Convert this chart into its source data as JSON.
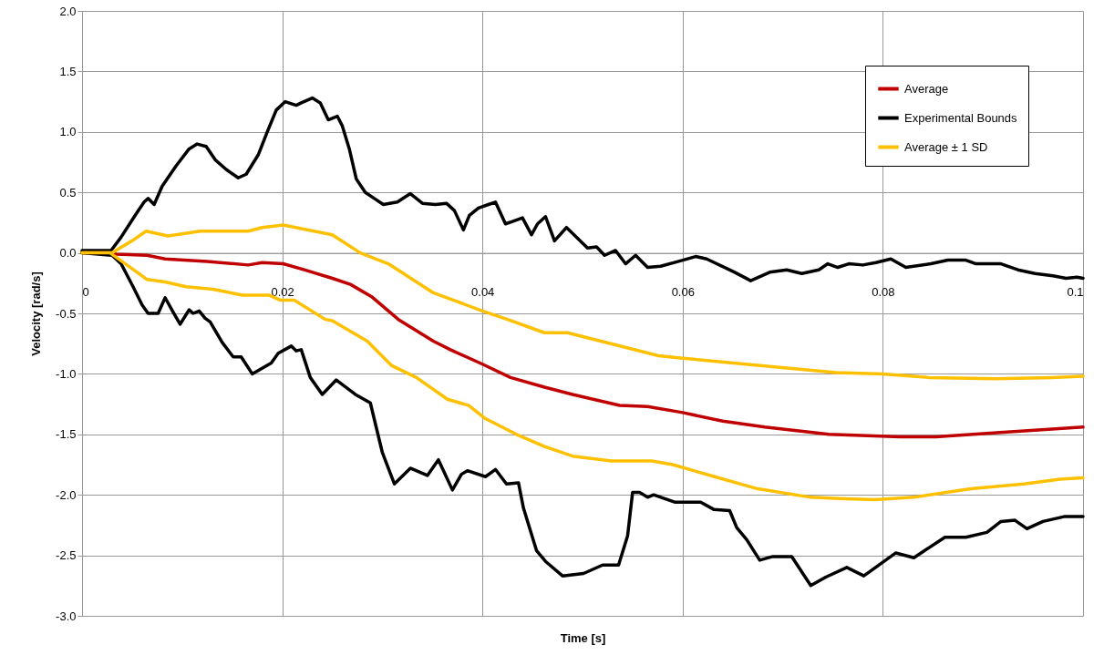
{
  "chart_data": {
    "type": "line",
    "xlabel": "Time [s]",
    "ylabel": "Velocity [rad/s]",
    "xlim": [
      0,
      0.1
    ],
    "xticks": [
      0,
      0.02,
      0.04,
      0.06,
      0.08,
      0.1
    ],
    "ylim": [
      -3,
      2
    ],
    "yticks": [
      {
        "value": -3,
        "label": "-3.0"
      },
      {
        "value": -2.5,
        "label": "-2.5"
      },
      {
        "value": -2,
        "label": "-2.0"
      },
      {
        "value": -1.5,
        "label": "-1.5"
      },
      {
        "value": -1,
        "label": "-1.0"
      },
      {
        "value": -0.5,
        "label": "-0.5"
      },
      {
        "value": 0,
        "label": "0.0"
      },
      {
        "value": 0.5,
        "label": "0.5"
      },
      {
        "value": 1,
        "label": "1.0"
      },
      {
        "value": 1.5,
        "label": "1.5"
      },
      {
        "value": 2,
        "label": "2.0"
      }
    ],
    "grid": true,
    "legend": "top right",
    "marker": "none",
    "line_style": "solid",
    "series": [
      {
        "name": "Average",
        "color": "#c00000",
        "x": [
          0,
          0.003,
          0.0034,
          0.0065,
          0.0083,
          0.0125,
          0.0166,
          0.018,
          0.0201,
          0.0222,
          0.025,
          0.0268,
          0.0289,
          0.0316,
          0.0351,
          0.0368,
          0.04,
          0.0428,
          0.0462,
          0.049,
          0.0537,
          0.0565,
          0.06,
          0.064,
          0.0682,
          0.0746,
          0.0817,
          0.0853,
          0.0924,
          0.1
        ],
        "values": [
          0,
          0,
          -0.01,
          -0.02,
          -0.05,
          -0.07,
          -0.1,
          -0.08,
          -0.09,
          -0.14,
          -0.21,
          -0.26,
          -0.36,
          -0.55,
          -0.73,
          -0.8,
          -0.92,
          -1.03,
          -1.11,
          -1.17,
          -1.26,
          -1.27,
          -1.32,
          -1.39,
          -1.44,
          -1.5,
          -1.52,
          -1.52,
          -1.48,
          -1.44
        ]
      },
      {
        "name": "Experimental Bounds",
        "color": "#000000",
        "x": [
          0,
          0.0029,
          0.0039,
          0.0053,
          0.0062,
          0.0066,
          0.0072,
          0.008,
          0.0094,
          0.0107,
          0.0115,
          0.0124,
          0.0133,
          0.0144,
          0.0156,
          0.0164,
          0.0176,
          0.0185,
          0.0194,
          0.0203,
          0.0214,
          0.0219,
          0.023,
          0.0238,
          0.0246,
          0.0255,
          0.026,
          0.0267,
          0.0274,
          0.0283,
          0.0292,
          0.0301,
          0.0315,
          0.0328,
          0.034,
          0.0353,
          0.0364,
          0.0372,
          0.0381,
          0.0387,
          0.0396,
          0.0406,
          0.0413,
          0.0423,
          0.043,
          0.044,
          0.0449,
          0.0455,
          0.0463,
          0.0472,
          0.0484,
          0.0505,
          0.0514,
          0.0522,
          0.0533,
          0.0543,
          0.0553,
          0.0565,
          0.0578,
          0.0596,
          0.0613,
          0.0624,
          0.0652,
          0.0668,
          0.0687,
          0.0704,
          0.0719,
          0.0736,
          0.0745,
          0.0755,
          0.0766,
          0.078,
          0.0793,
          0.0808,
          0.0823,
          0.0848,
          0.0865,
          0.0883,
          0.0893,
          0.0918,
          0.0935,
          0.0952,
          0.097,
          0.0983,
          0.0994,
          0.1
        ],
        "values": [
          0.02,
          0.02,
          0.13,
          0.31,
          0.42,
          0.45,
          0.4,
          0.55,
          0.72,
          0.86,
          0.9,
          0.88,
          0.77,
          0.69,
          0.62,
          0.65,
          0.81,
          1.0,
          1.18,
          1.25,
          1.22,
          1.24,
          1.28,
          1.24,
          1.1,
          1.13,
          1.05,
          0.86,
          0.61,
          0.5,
          0.45,
          0.4,
          0.42,
          0.49,
          0.41,
          0.4,
          0.41,
          0.35,
          0.19,
          0.31,
          0.37,
          0.4,
          0.42,
          0.24,
          0.26,
          0.29,
          0.15,
          0.24,
          0.3,
          0.1,
          0.21,
          0.04,
          0.05,
          -0.02,
          0.02,
          -0.09,
          -0.02,
          -0.12,
          -0.11,
          -0.07,
          -0.03,
          -0.05,
          -0.16,
          -0.23,
          -0.16,
          -0.14,
          -0.17,
          -0.14,
          -0.09,
          -0.12,
          -0.09,
          -0.1,
          -0.08,
          -0.05,
          -0.12,
          -0.09,
          -0.06,
          -0.06,
          -0.09,
          -0.09,
          -0.14,
          -0.17,
          -0.19,
          -0.21,
          -0.2,
          -0.21
        ]
      },
      {
        "color": "#000000",
        "x": [
          0,
          0.0016,
          0.003,
          0.0039,
          0.0051,
          0.006,
          0.0066,
          0.0076,
          0.0083,
          0.0091,
          0.0098,
          0.0107,
          0.0111,
          0.0117,
          0.0123,
          0.0128,
          0.014,
          0.0151,
          0.0159,
          0.017,
          0.0189,
          0.0196,
          0.0209,
          0.0214,
          0.0219,
          0.0228,
          0.024,
          0.0254,
          0.0273,
          0.0288,
          0.03,
          0.0312,
          0.0328,
          0.0345,
          0.0356,
          0.037,
          0.0379,
          0.0385,
          0.0403,
          0.0413,
          0.0424,
          0.0436,
          0.0441,
          0.0454,
          0.0463,
          0.048,
          0.0501,
          0.052,
          0.0536,
          0.0545,
          0.055,
          0.0557,
          0.0565,
          0.0571,
          0.0592,
          0.0618,
          0.0631,
          0.0647,
          0.0654,
          0.0664,
          0.0677,
          0.069,
          0.0709,
          0.0728,
          0.0743,
          0.0764,
          0.0781,
          0.0813,
          0.0831,
          0.0862,
          0.0883,
          0.0904,
          0.0918,
          0.0932,
          0.0944,
          0.096,
          0.0981,
          0.0994,
          0.1
        ],
        "values": [
          0,
          -0.01,
          -0.02,
          -0.09,
          -0.28,
          -0.43,
          -0.5,
          -0.5,
          -0.37,
          -0.49,
          -0.59,
          -0.47,
          -0.5,
          -0.48,
          -0.54,
          -0.57,
          -0.74,
          -0.86,
          -0.86,
          -1.0,
          -0.91,
          -0.83,
          -0.77,
          -0.81,
          -0.8,
          -1.03,
          -1.17,
          -1.05,
          -1.17,
          -1.24,
          -1.65,
          -1.91,
          -1.78,
          -1.84,
          -1.71,
          -1.96,
          -1.83,
          -1.8,
          -1.85,
          -1.79,
          -1.91,
          -1.9,
          -2.11,
          -2.46,
          -2.55,
          -2.67,
          -2.65,
          -2.58,
          -2.58,
          -2.34,
          -1.98,
          -1.98,
          -2.02,
          -2.0,
          -2.06,
          -2.06,
          -2.12,
          -2.13,
          -2.27,
          -2.37,
          -2.54,
          -2.51,
          -2.51,
          -2.75,
          -2.68,
          -2.6,
          -2.67,
          -2.48,
          -2.52,
          -2.35,
          -2.35,
          -2.31,
          -2.22,
          -2.21,
          -2.28,
          -2.22,
          -2.18,
          -2.18,
          -2.18
        ]
      },
      {
        "name": "Average ± 1 SD",
        "color": "#ffc000",
        "x": [
          0,
          0.003,
          0.005,
          0.0064,
          0.0086,
          0.0118,
          0.0166,
          0.018,
          0.0201,
          0.025,
          0.0278,
          0.0306,
          0.0351,
          0.04,
          0.0425,
          0.0462,
          0.0485,
          0.0576,
          0.06,
          0.0675,
          0.0753,
          0.08,
          0.0846,
          0.0913,
          0.0969,
          0.1
        ],
        "values": [
          0,
          0,
          0.1,
          0.18,
          0.14,
          0.18,
          0.18,
          0.21,
          0.23,
          0.15,
          0.0,
          -0.09,
          -0.33,
          -0.48,
          -0.55,
          -0.66,
          -0.66,
          -0.85,
          -0.87,
          -0.93,
          -0.99,
          -1.0,
          -1.03,
          -1.04,
          -1.03,
          -1.02
        ]
      },
      {
        "color": "#ffc000",
        "x": [
          0,
          0.0028,
          0.0055,
          0.0065,
          0.0083,
          0.0104,
          0.0131,
          0.016,
          0.0187,
          0.0198,
          0.0212,
          0.0243,
          0.025,
          0.0285,
          0.0309,
          0.0334,
          0.0365,
          0.0386,
          0.0403,
          0.0434,
          0.0462,
          0.049,
          0.0529,
          0.0569,
          0.059,
          0.0632,
          0.0675,
          0.0728,
          0.0756,
          0.0792,
          0.0831,
          0.0888,
          0.0941,
          0.0977,
          0.1
        ],
        "values": [
          0,
          0,
          -0.16,
          -0.22,
          -0.24,
          -0.28,
          -0.3,
          -0.35,
          -0.35,
          -0.39,
          -0.39,
          -0.55,
          -0.56,
          -0.73,
          -0.93,
          -1.03,
          -1.21,
          -1.26,
          -1.37,
          -1.5,
          -1.6,
          -1.68,
          -1.72,
          -1.72,
          -1.75,
          -1.85,
          -1.95,
          -2.02,
          -2.03,
          -2.04,
          -2.02,
          -1.95,
          -1.91,
          -1.87,
          -1.86
        ]
      }
    ]
  }
}
